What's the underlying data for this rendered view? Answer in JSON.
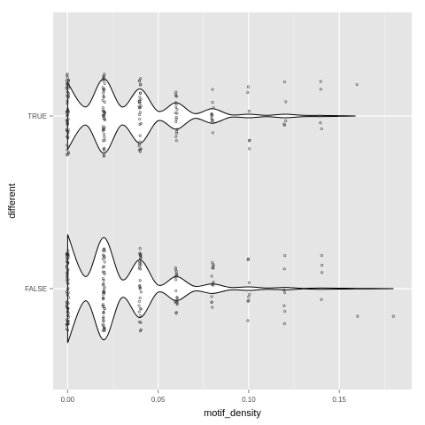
{
  "chart_data": {
    "type": "violin",
    "xlabel": "motif_density",
    "ylabel": "different",
    "xlim": [
      -0.008,
      0.19
    ],
    "x_ticks": [
      0.0,
      0.05,
      0.1,
      0.15
    ],
    "x_tick_labels": [
      "0.00",
      "0.05",
      "0.10",
      "0.15"
    ],
    "categories": [
      "TRUE",
      "FALSE"
    ],
    "orientation": "horizontal",
    "grid": true,
    "legend": "none",
    "colors": {
      "panel_bg": "#e5e5e5",
      "grid_major": "#ffffff",
      "grid_minor": "#f2f2f2",
      "violin_fill": "#ffffff",
      "violin_line": "#000000",
      "points": "#333333"
    },
    "series": [
      {
        "category": "TRUE",
        "density_profile": [
          [
            0.0,
            0.55
          ],
          [
            0.01,
            0.15
          ],
          [
            0.02,
            0.62
          ],
          [
            0.03,
            0.15
          ],
          [
            0.04,
            0.45
          ],
          [
            0.05,
            0.08
          ],
          [
            0.06,
            0.22
          ],
          [
            0.07,
            0.04
          ],
          [
            0.08,
            0.12
          ],
          [
            0.09,
            0.02
          ],
          [
            0.1,
            0.03
          ],
          [
            0.11,
            0.01
          ],
          [
            0.12,
            0.03
          ],
          [
            0.13,
            0.01
          ],
          [
            0.14,
            0.01
          ],
          [
            0.15,
            0.005
          ],
          [
            0.159,
            0.0
          ]
        ],
        "points": [
          {
            "x": 0.0,
            "n": 60
          },
          {
            "x": 0.02,
            "n": 45
          },
          {
            "x": 0.04,
            "n": 30
          },
          {
            "x": 0.06,
            "n": 18
          },
          {
            "x": 0.08,
            "n": 12
          },
          {
            "x": 0.1,
            "n": 6
          },
          {
            "x": 0.12,
            "n": 5
          },
          {
            "x": 0.14,
            "n": 4
          },
          {
            "x": 0.16,
            "n": 1
          }
        ]
      },
      {
        "category": "FALSE",
        "density_profile": [
          [
            0.0,
            0.9
          ],
          [
            0.01,
            0.2
          ],
          [
            0.02,
            0.85
          ],
          [
            0.03,
            0.15
          ],
          [
            0.04,
            0.48
          ],
          [
            0.05,
            0.06
          ],
          [
            0.06,
            0.2
          ],
          [
            0.07,
            0.04
          ],
          [
            0.08,
            0.08
          ],
          [
            0.09,
            0.02
          ],
          [
            0.1,
            0.03
          ],
          [
            0.11,
            0.01
          ],
          [
            0.12,
            0.02
          ],
          [
            0.13,
            0.005
          ],
          [
            0.14,
            0.01
          ],
          [
            0.16,
            0.005
          ],
          [
            0.18,
            0.0
          ]
        ],
        "points": [
          {
            "x": 0.0,
            "n": 70
          },
          {
            "x": 0.02,
            "n": 48
          },
          {
            "x": 0.04,
            "n": 32
          },
          {
            "x": 0.06,
            "n": 20
          },
          {
            "x": 0.08,
            "n": 14
          },
          {
            "x": 0.1,
            "n": 8
          },
          {
            "x": 0.12,
            "n": 7
          },
          {
            "x": 0.14,
            "n": 4
          },
          {
            "x": 0.16,
            "n": 1
          },
          {
            "x": 0.18,
            "n": 1
          }
        ]
      }
    ]
  }
}
